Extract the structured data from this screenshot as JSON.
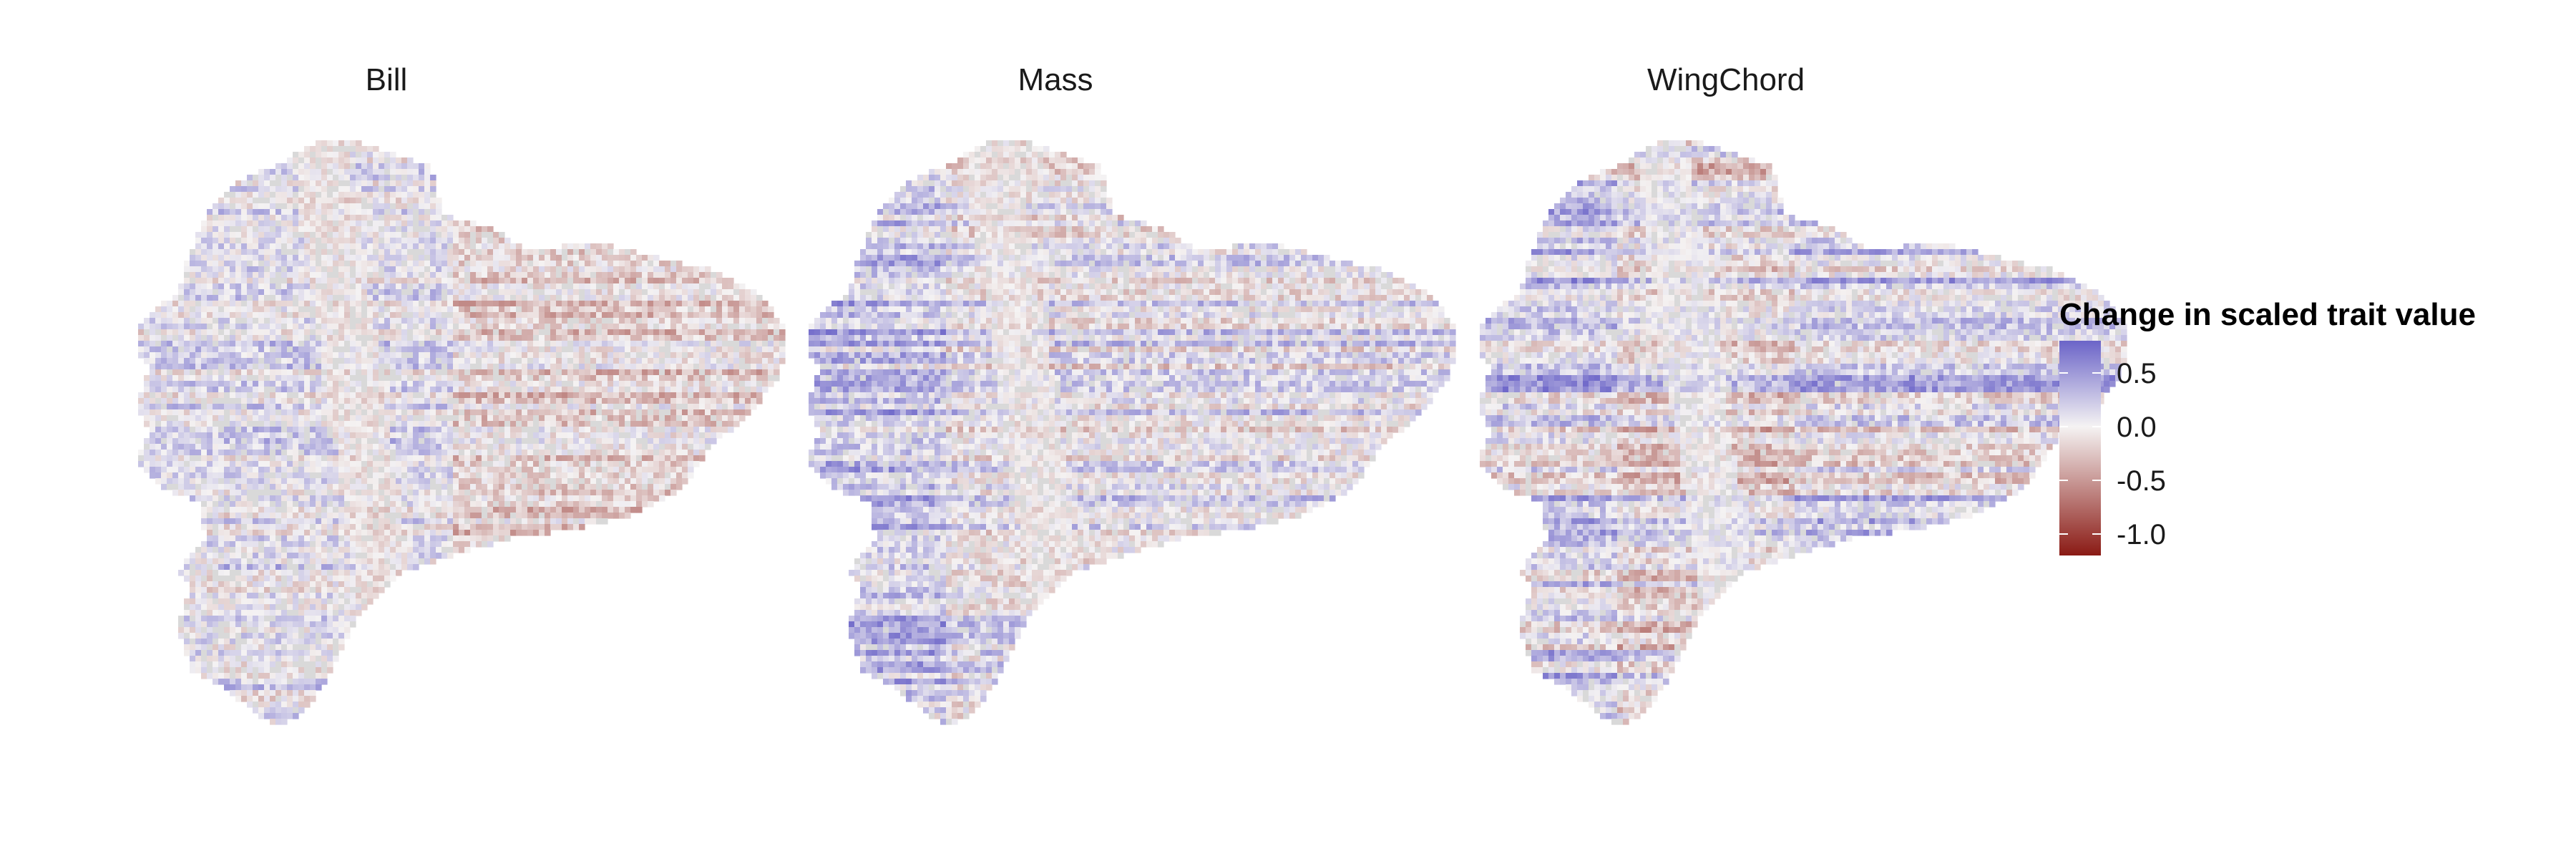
{
  "panels": [
    {
      "title": "Bill",
      "seed": 11,
      "bias": 0.1,
      "stripe_amp": 0.35,
      "tint_center": -0.1
    },
    {
      "title": "Mass",
      "seed": 37,
      "bias": 0.05,
      "stripe_amp": 0.45,
      "tint_center": -0.05
    },
    {
      "title": "WingChord",
      "seed": 73,
      "bias": -0.05,
      "stripe_amp": 0.65,
      "tint_center": 0.05
    }
  ],
  "legend": {
    "title": "Change in scaled trait value",
    "ticks": [
      {
        "label": "0.5",
        "value": 0.5
      },
      {
        "label": "0.0",
        "value": 0.0
      },
      {
        "label": "-0.5",
        "value": -0.5
      },
      {
        "label": "-1.0",
        "value": -1.0
      }
    ],
    "range": [
      -1.2,
      0.8
    ]
  },
  "colors": {
    "high": "#6b64c8",
    "mid": "#f5f3f3",
    "low": "#8a1a14",
    "na": "#d9d9d9"
  }
}
